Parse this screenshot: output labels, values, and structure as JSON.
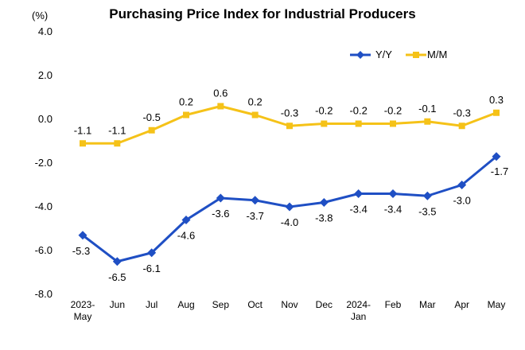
{
  "chart_data": {
    "type": "line",
    "title": "Purchasing Price Index for Industrial Producers",
    "unit_label": "(%)",
    "ylim": [
      -8.0,
      4.0
    ],
    "yticks": [
      "4.0",
      "2.0",
      "0.0",
      "-2.0",
      "-4.0",
      "-6.0",
      "-8.0"
    ],
    "ytick_values": [
      4,
      2,
      0,
      -2,
      -4,
      -6,
      -8
    ],
    "categories": [
      [
        "2023-",
        "May"
      ],
      [
        "Jun"
      ],
      [
        "Jul"
      ],
      [
        "Aug"
      ],
      [
        "Sep"
      ],
      [
        "Oct"
      ],
      [
        "Nov"
      ],
      [
        "Dec"
      ],
      [
        "2024-",
        "Jan"
      ],
      [
        "Feb"
      ],
      [
        "Mar"
      ],
      [
        "Apr"
      ],
      [
        "May"
      ]
    ],
    "legend_position": "top-right",
    "series": [
      {
        "name": "Y/Y",
        "color": "#1f4fc4",
        "marker": "diamond",
        "values": [
          -5.3,
          -6.5,
          -6.1,
          -4.6,
          -3.6,
          -3.7,
          -4.0,
          -3.8,
          -3.4,
          -3.4,
          -3.5,
          -3.0,
          -1.7
        ],
        "labels": [
          "-5.3",
          "-6.5",
          "-6.1",
          "-4.6",
          "-3.6",
          "-3.7",
          "-4.0",
          "-3.8",
          "-3.4",
          "-3.4",
          "-3.5",
          "-3.0",
          "-1.7"
        ]
      },
      {
        "name": "M/M",
        "color": "#f5c218",
        "marker": "square",
        "values": [
          -1.1,
          -1.1,
          -0.5,
          0.2,
          0.6,
          0.2,
          -0.3,
          -0.2,
          -0.2,
          -0.2,
          -0.1,
          -0.3,
          0.3
        ],
        "labels": [
          "-1.1",
          "-1.1",
          "-0.5",
          "0.2",
          "0.6",
          "0.2",
          "-0.3",
          "-0.2",
          "-0.2",
          "-0.2",
          "-0.1",
          "-0.3",
          "0.3"
        ]
      }
    ]
  }
}
